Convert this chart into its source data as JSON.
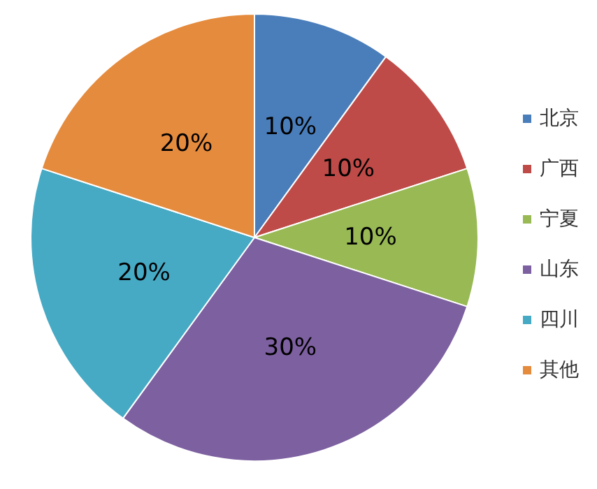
{
  "chart_data": {
    "type": "pie",
    "categories": [
      "北京",
      "广西",
      "宁夏",
      "山东",
      "四川",
      "其他"
    ],
    "values": [
      10,
      10,
      10,
      30,
      20,
      20
    ],
    "value_labels": [
      "10%",
      "10%",
      "10%",
      "30%",
      "20%",
      "20%"
    ],
    "colors": [
      "#4a7ebb",
      "#be4b48",
      "#98b954",
      "#7d60a0",
      "#46aac5",
      "#e58b3e"
    ],
    "legend": "right"
  }
}
